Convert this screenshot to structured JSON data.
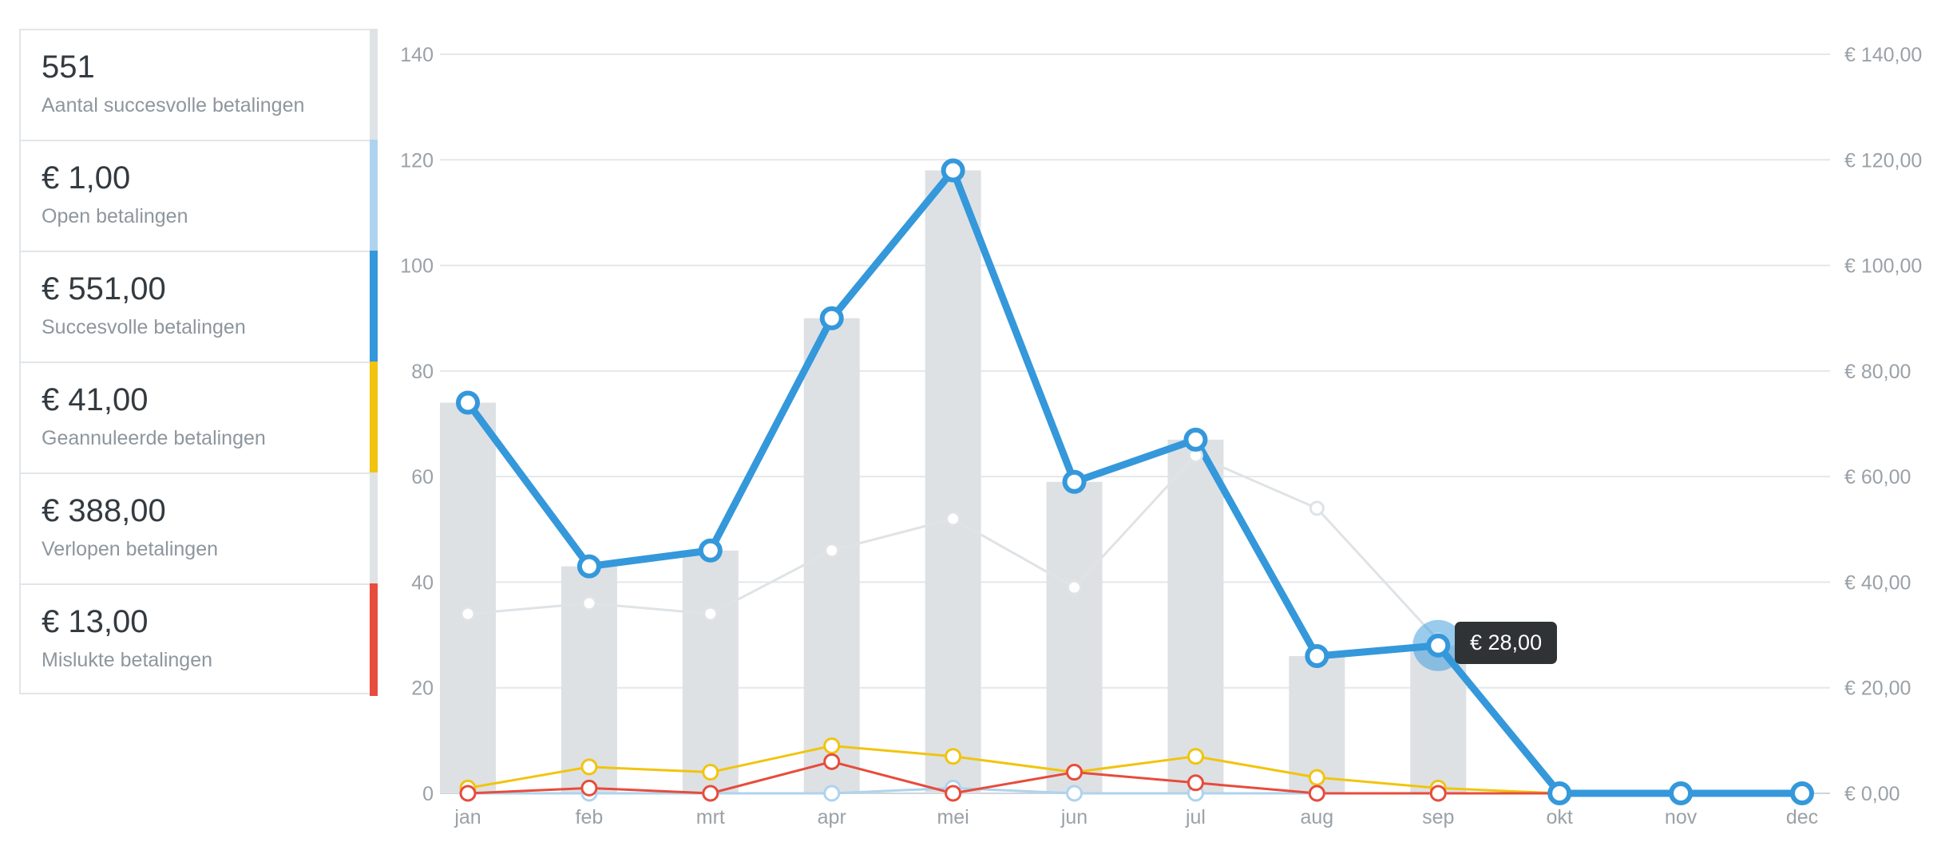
{
  "stats": [
    {
      "value": "551",
      "label": "Aantal succesvolle betalingen",
      "color": "#dfe3e6"
    },
    {
      "value": "€ 1,00",
      "label": "Open betalingen",
      "color": "#aed3ee"
    },
    {
      "value": "€ 551,00",
      "label": "Succesvolle betalingen",
      "color": "#3498db"
    },
    {
      "value": "€ 41,00",
      "label": "Geannuleerde betalingen",
      "color": "#f1c40f"
    },
    {
      "value": "€ 388,00",
      "label": "Verlopen betalingen",
      "color": "#dfe3e6"
    },
    {
      "value": "€ 13,00",
      "label": "Mislukte betalingen",
      "color": "#e74c3c"
    }
  ],
  "tooltip": {
    "text": "€ 28,00",
    "month_index": 8
  },
  "chart_data": {
    "type": "bar",
    "categories": [
      "jan",
      "feb",
      "mrt",
      "apr",
      "mei",
      "jun",
      "jul",
      "aug",
      "sep",
      "okt",
      "nov",
      "dec"
    ],
    "left_axis": {
      "ticks": [
        "0",
        "20",
        "40",
        "60",
        "80",
        "100",
        "120",
        "140"
      ],
      "ylim": [
        0,
        140
      ]
    },
    "right_axis": {
      "ticks": [
        "€ 0,00",
        "€ 20,00",
        "€ 40,00",
        "€ 60,00",
        "€ 80,00",
        "€ 100,00",
        "€ 120,00",
        "€ 140,00"
      ],
      "ylim": [
        0,
        140
      ]
    },
    "grid": true,
    "bars": {
      "color": "#dde1e4",
      "values": [
        74,
        43,
        46,
        90,
        118,
        59,
        67,
        26,
        28,
        0,
        0,
        0
      ]
    },
    "series": [
      {
        "key": "expired",
        "color": "#dfe3e6",
        "values": [
          34,
          36,
          34,
          46,
          52,
          39,
          64,
          54,
          29,
          null,
          null,
          null
        ],
        "width": 3,
        "marker": "filled"
      },
      {
        "key": "open",
        "color": "#aed3ee",
        "values": [
          0,
          0,
          0,
          0,
          1,
          0,
          0,
          0,
          0,
          null,
          null,
          null
        ],
        "width": 3,
        "marker": "ring"
      },
      {
        "key": "canceled",
        "color": "#f1c40f",
        "values": [
          1,
          5,
          4,
          9,
          7,
          4,
          7,
          3,
          1,
          0,
          null,
          null
        ],
        "width": 3,
        "marker": "ring"
      },
      {
        "key": "failed",
        "color": "#e74c3c",
        "values": [
          0,
          1,
          0,
          6,
          0,
          4,
          2,
          0,
          0,
          0,
          0,
          0
        ],
        "width": 3,
        "marker": "ring"
      },
      {
        "key": "successful",
        "color": "#3498db",
        "values": [
          74,
          43,
          46,
          90,
          118,
          59,
          67,
          26,
          28,
          0,
          0,
          0
        ],
        "width": 9,
        "marker": "ring-large"
      }
    ]
  }
}
